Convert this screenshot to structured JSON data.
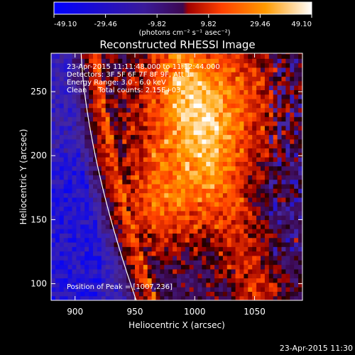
{
  "chart_data": {
    "type": "heatmap",
    "title": "Reconstructed RHESSI Image",
    "xlabel": "Heliocentric X (arcsec)",
    "ylabel": "Heliocentric Y (arcsec)",
    "xlim": [
      880,
      1090
    ],
    "ylim": [
      87,
      280
    ],
    "xticks": [
      900,
      950,
      1000,
      1050
    ],
    "yticks": [
      100,
      150,
      200,
      250
    ],
    "colorbar": {
      "min": -49.1,
      "max": 49.1,
      "ticks": [
        "-49.10",
        "-29.46",
        "-9.82",
        "9.82",
        "29.46",
        "49.10"
      ],
      "units_label": "(photons cm⁻² s⁻¹ asec⁻²)",
      "colormap": [
        "#0000ff",
        "#3a1a9a",
        "#3c0850",
        "#ff4000",
        "#ff9a00",
        "#ffffff"
      ]
    },
    "limb_line_color": "#ffffff",
    "info_lines": [
      "23-Apr-2015 11:11:48.000 to 11:12:44.000",
      "Detectors: 3F 5F 6F 7F 8F 9F, Att 1",
      "Energy Range: 3.0 - 6.0 keV",
      "Clean     Total counts: 2.15E+03"
    ],
    "peak_label": "Position of Peak = [1007,236]",
    "peak": [
      1007,
      236
    ],
    "timestamp": "23-Apr-2015 11:30"
  }
}
